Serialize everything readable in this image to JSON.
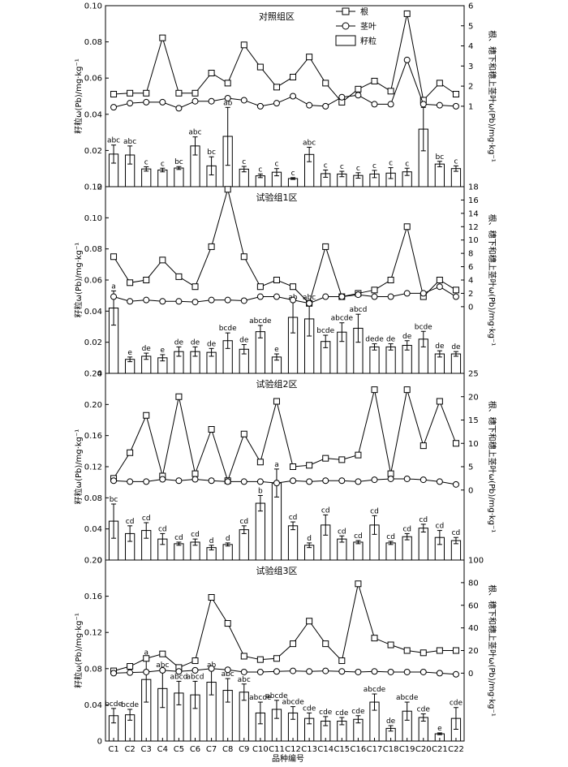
{
  "xlabel": "品种编号",
  "ylabel_left": "籽粒ω(Pb)/mg·kg⁻¹",
  "ylabel_right": "根、穗下和穗上茎叶ω(Pb)/mg·kg⁻¹",
  "legend": {
    "root": "根",
    "stem_leaf": "茎叶",
    "grain": "籽粒"
  },
  "colors": {
    "axis": "#000000",
    "bar_fill": "#ffffff",
    "line": "#000000"
  },
  "chart_data": [
    {
      "type": "bar+line",
      "title": "对照组区",
      "categories": [
        "C1",
        "C2",
        "C3",
        "C4",
        "C5",
        "C6",
        "C7",
        "C8",
        "C9",
        "C10",
        "C11",
        "C12",
        "C13",
        "C14",
        "C15",
        "C16",
        "C17",
        "C18",
        "C19",
        "C20",
        "C21",
        "C22"
      ],
      "left_ylim": [
        0,
        0.1
      ],
      "left_yticks": [
        "0",
        "0.02",
        "0.04",
        "0.06",
        "0.08",
        "0.10"
      ],
      "right_ylim": [
        -3,
        6
      ],
      "right_yticks": [
        "1",
        "2",
        "3",
        "4",
        "5",
        "6"
      ],
      "series": [
        {
          "name": "籽粒",
          "type": "bar",
          "axis": "left",
          "values": [
            0.018,
            0.0175,
            0.0098,
            0.0092,
            0.0103,
            0.0225,
            0.0115,
            0.0278,
            0.0097,
            0.006,
            0.008,
            0.0045,
            0.0178,
            0.0072,
            0.007,
            0.0062,
            0.007,
            0.0075,
            0.0082,
            0.0318,
            0.0125,
            0.01
          ],
          "errors": [
            0.005,
            0.005,
            0.0012,
            0.001,
            0.0008,
            0.005,
            0.005,
            0.016,
            0.0015,
            0.001,
            0.002,
            0.0005,
            0.004,
            0.002,
            0.0015,
            0.0015,
            0.002,
            0.003,
            0.002,
            0.012,
            0.0015,
            0.0015
          ],
          "labels": [
            "abc",
            "abc",
            "c",
            "c",
            "bc",
            "abc",
            "bc",
            "ab",
            "c",
            "c",
            "c",
            "c",
            "abc",
            "c",
            "c",
            "c",
            "c",
            "c",
            "c",
            "a",
            "bc",
            "c"
          ]
        },
        {
          "name": "根",
          "type": "line",
          "marker": "square",
          "axis": "right",
          "values": [
            1.6,
            1.65,
            1.65,
            4.4,
            1.65,
            1.65,
            2.65,
            2.15,
            4.05,
            2.95,
            1.95,
            2.45,
            3.45,
            2.15,
            1.2,
            1.85,
            2.25,
            1.75,
            5.6,
            1.3,
            2.15,
            1.6
          ]
        },
        {
          "name": "茎叶",
          "type": "line",
          "marker": "circle",
          "axis": "right",
          "values": [
            0.95,
            1.15,
            1.2,
            1.2,
            0.9,
            1.25,
            1.25,
            1.4,
            1.3,
            1.0,
            1.15,
            1.5,
            1.05,
            1.0,
            1.45,
            1.55,
            1.1,
            1.1,
            3.3,
            1.1,
            1.05,
            1.0
          ]
        }
      ]
    },
    {
      "type": "bar+line",
      "title": "试验组1区",
      "categories": [
        "C1",
        "C2",
        "C3",
        "C4",
        "C5",
        "C6",
        "C7",
        "C8",
        "C9",
        "C10",
        "C11",
        "C12",
        "C13",
        "C14",
        "C15",
        "C16",
        "C17",
        "C18",
        "C19",
        "C20",
        "C21",
        "C22"
      ],
      "left_ylim": [
        0,
        0.12
      ],
      "left_yticks": [
        "0",
        "0.02",
        "0.04",
        "0.06",
        "0.08",
        "0.10",
        "0.12"
      ],
      "right_ylim": [
        -10,
        18
      ],
      "right_yticks": [
        "0",
        "2",
        "4",
        "6",
        "8",
        "10",
        "12",
        "14",
        "16",
        "18"
      ],
      "series": [
        {
          "name": "籽粒",
          "type": "bar",
          "axis": "left",
          "values": [
            0.042,
            0.009,
            0.011,
            0.01,
            0.014,
            0.014,
            0.0135,
            0.021,
            0.0155,
            0.0268,
            0.0105,
            0.036,
            0.035,
            0.0205,
            0.0265,
            0.029,
            0.017,
            0.017,
            0.018,
            0.022,
            0.0125,
            0.0125
          ],
          "errors": [
            0.011,
            0.0015,
            0.002,
            0.002,
            0.003,
            0.003,
            0.0025,
            0.005,
            0.003,
            0.004,
            0.002,
            0.01,
            0.011,
            0.004,
            0.006,
            0.009,
            0.002,
            0.002,
            0.003,
            0.005,
            0.002,
            0.0015
          ],
          "labels": [
            "a",
            "e",
            "de",
            "e",
            "de",
            "de",
            "de",
            "bcde",
            "de",
            "abcde",
            "e",
            "ab",
            "abc",
            "bcde",
            "abcde",
            "abcd",
            "dede",
            "de",
            "de",
            "bcde",
            "de",
            "de"
          ]
        },
        {
          "name": "根",
          "type": "line",
          "marker": "square",
          "axis": "right",
          "values": [
            7.5,
            3.6,
            4.0,
            7.0,
            4.5,
            3.0,
            9.0,
            17.6,
            7.5,
            3.0,
            4.0,
            3.0,
            0.5,
            9.0,
            1.5,
            2.0,
            2.5,
            4.0,
            12.0,
            1.5,
            4.0,
            2.5
          ]
        },
        {
          "name": "茎叶",
          "type": "line",
          "marker": "circle",
          "axis": "right",
          "values": [
            1.5,
            0.8,
            1.0,
            0.8,
            0.8,
            0.7,
            1.0,
            1.0,
            0.9,
            1.5,
            1.5,
            1.0,
            0.5,
            1.5,
            1.5,
            1.8,
            1.5,
            1.5,
            2.0,
            2.0,
            3.0,
            1.5
          ]
        }
      ]
    },
    {
      "type": "bar+line",
      "title": "试验组2区",
      "categories": [
        "C1",
        "C2",
        "C3",
        "C4",
        "C5",
        "C6",
        "C7",
        "C8",
        "C9",
        "C10",
        "C11",
        "C12",
        "C13",
        "C14",
        "C15",
        "C16",
        "C17",
        "C18",
        "C19",
        "C20",
        "C21",
        "C22"
      ],
      "left_ylim": [
        0,
        0.24
      ],
      "left_yticks": [
        "0",
        "0.04",
        "0.08",
        "0.12",
        "0.16",
        "0.20",
        "0.24"
      ],
      "right_ylim": [
        -15,
        25
      ],
      "right_yticks": [
        "0",
        "5",
        "10",
        "15",
        "20",
        "25"
      ],
      "series": [
        {
          "name": "籽粒",
          "type": "bar",
          "axis": "left",
          "values": [
            0.05,
            0.034,
            0.038,
            0.027,
            0.021,
            0.023,
            0.016,
            0.02,
            0.039,
            0.073,
            0.099,
            0.044,
            0.019,
            0.045,
            0.027,
            0.023,
            0.045,
            0.022,
            0.03,
            0.041,
            0.029,
            0.025
          ],
          "errors": [
            0.022,
            0.01,
            0.01,
            0.007,
            0.002,
            0.004,
            0.003,
            0.002,
            0.005,
            0.01,
            0.018,
            0.005,
            0.003,
            0.013,
            0.004,
            0.002,
            0.012,
            0.002,
            0.004,
            0.005,
            0.009,
            0.004
          ],
          "labels": [
            "bc",
            "cd",
            "cd",
            "cd",
            "cd",
            "cd",
            "d",
            "d",
            "cd",
            "b",
            "a",
            "cd",
            "d",
            "cd",
            "cd",
            "cd",
            "cd",
            "cd",
            "cd",
            "cd",
            "cd",
            "cd"
          ]
        },
        {
          "name": "根",
          "type": "line",
          "marker": "square",
          "axis": "right",
          "values": [
            2.5,
            8.0,
            16.0,
            3.0,
            20.0,
            3.5,
            13.0,
            2.0,
            12.0,
            6.0,
            19.0,
            5.0,
            5.3,
            6.8,
            6.5,
            7.5,
            21.5,
            3.5,
            21.5,
            9.5,
            19.0,
            10.0
          ]
        },
        {
          "name": "茎叶",
          "type": "line",
          "marker": "circle",
          "axis": "right",
          "values": [
            2.0,
            1.8,
            1.8,
            2.3,
            2.0,
            2.3,
            2.0,
            1.8,
            1.8,
            1.8,
            1.5,
            2.0,
            1.8,
            2.0,
            2.0,
            1.8,
            2.2,
            2.4,
            2.4,
            2.2,
            1.8,
            1.2
          ]
        }
      ]
    },
    {
      "type": "bar+line",
      "title": "试验组3区",
      "categories": [
        "C1",
        "C2",
        "C3",
        "C4",
        "C5",
        "C6",
        "C7",
        "C8",
        "C9",
        "C10",
        "C11",
        "C12",
        "C13",
        "C14",
        "C15",
        "C16",
        "C17",
        "C18",
        "C19",
        "C20",
        "C21",
        "C22"
      ],
      "left_ylim": [
        0,
        0.2
      ],
      "left_yticks": [
        "0",
        "0.04",
        "0.08",
        "0.12",
        "0.16",
        "0.20"
      ],
      "right_ylim": [
        -60,
        100
      ],
      "right_yticks": [
        "0",
        "20",
        "40",
        "60",
        "80",
        "100"
      ],
      "series": [
        {
          "name": "籽粒",
          "type": "bar",
          "axis": "left",
          "values": [
            0.028,
            0.029,
            0.068,
            0.058,
            0.053,
            0.051,
            0.065,
            0.056,
            0.054,
            0.031,
            0.035,
            0.031,
            0.025,
            0.022,
            0.022,
            0.024,
            0.043,
            0.014,
            0.033,
            0.026,
            0.008,
            0.025
          ],
          "errors": [
            0.008,
            0.006,
            0.025,
            0.021,
            0.013,
            0.015,
            0.014,
            0.013,
            0.009,
            0.012,
            0.01,
            0.007,
            0.006,
            0.005,
            0.004,
            0.004,
            0.009,
            0.003,
            0.01,
            0.004,
            0.001,
            0.012
          ],
          "labels": [
            "bcde",
            "bcde",
            "a",
            "abc",
            "abcd",
            "abcd",
            "ab",
            "abc",
            "abc",
            "abcde",
            "abcde",
            "abcde",
            "cde",
            "cde",
            "cde",
            "cde",
            "abcde",
            "de",
            "abcde",
            "cde",
            "e",
            "cde"
          ]
        },
        {
          "name": "根",
          "type": "line",
          "marker": "square",
          "axis": "right",
          "values": [
            2.0,
            6.0,
            13.0,
            17.0,
            5.0,
            11.0,
            67.0,
            44.0,
            15.0,
            12.0,
            13.0,
            26.0,
            46.0,
            26.0,
            11.0,
            79.0,
            31.0,
            25.0,
            20.0,
            18.0,
            20.0,
            20.0
          ]
        },
        {
          "name": "茎叶",
          "type": "line",
          "marker": "circle",
          "axis": "right",
          "values": [
            0.0,
            0.5,
            1.0,
            2.5,
            1.5,
            2.5,
            4.0,
            3.0,
            1.0,
            1.0,
            1.5,
            2.0,
            1.5,
            2.0,
            1.5,
            1.0,
            1.5,
            1.0,
            1.0,
            1.0,
            0.0,
            -1.0
          ]
        }
      ]
    }
  ]
}
